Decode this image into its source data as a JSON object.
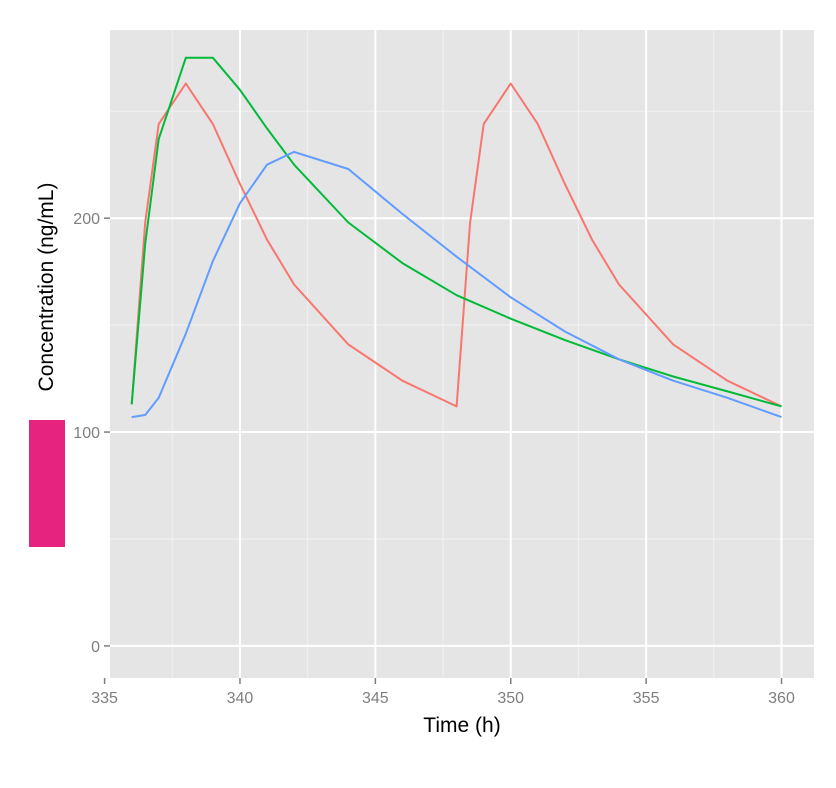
{
  "chart_data": {
    "type": "line",
    "title": "",
    "xlabel": "Time (h)",
    "ylabel": "Concentration (ng/mL)",
    "xlim": [
      335.2,
      361.2
    ],
    "ylim": [
      -15,
      288
    ],
    "x_ticks": [
      335,
      340,
      345,
      350,
      355,
      360
    ],
    "x_tick_labels": [
      "335",
      "340",
      "345",
      "350",
      "355",
      "360"
    ],
    "y_ticks": [
      0,
      100,
      200
    ],
    "y_tick_labels": [
      "0",
      "100",
      "200"
    ],
    "grid": true,
    "legend": "none",
    "series": [
      {
        "color": "#F8766D",
        "x": [
          336,
          336.5,
          337,
          338,
          339,
          340,
          341,
          342,
          344,
          346,
          348,
          348.5,
          349,
          350,
          351,
          352,
          353,
          354,
          356,
          358,
          360
        ],
        "y": [
          113,
          198,
          244,
          263,
          244,
          216,
          190,
          169,
          141,
          124,
          112,
          198,
          244,
          263,
          244,
          216,
          190,
          169,
          141,
          124,
          112
        ]
      },
      {
        "color": "#00BA38",
        "x": [
          336,
          336.5,
          337,
          338,
          339,
          340,
          341,
          342,
          344,
          346,
          348,
          350,
          352,
          354,
          356,
          358,
          360
        ],
        "y": [
          113,
          188,
          237,
          275,
          275,
          260,
          242,
          225,
          198,
          179,
          164,
          153,
          143,
          134,
          126,
          119,
          112
        ]
      },
      {
        "color": "#619CFF",
        "x": [
          336,
          336.5,
          337,
          338,
          339,
          340,
          341,
          342,
          344,
          346,
          348,
          350,
          352,
          354,
          356,
          358,
          360
        ],
        "y": [
          107,
          108,
          116,
          146,
          180,
          207,
          225,
          231,
          223,
          202,
          182,
          163,
          147,
          134,
          124,
          116,
          107
        ]
      }
    ]
  },
  "overlay": {
    "color": "#E6237F"
  }
}
